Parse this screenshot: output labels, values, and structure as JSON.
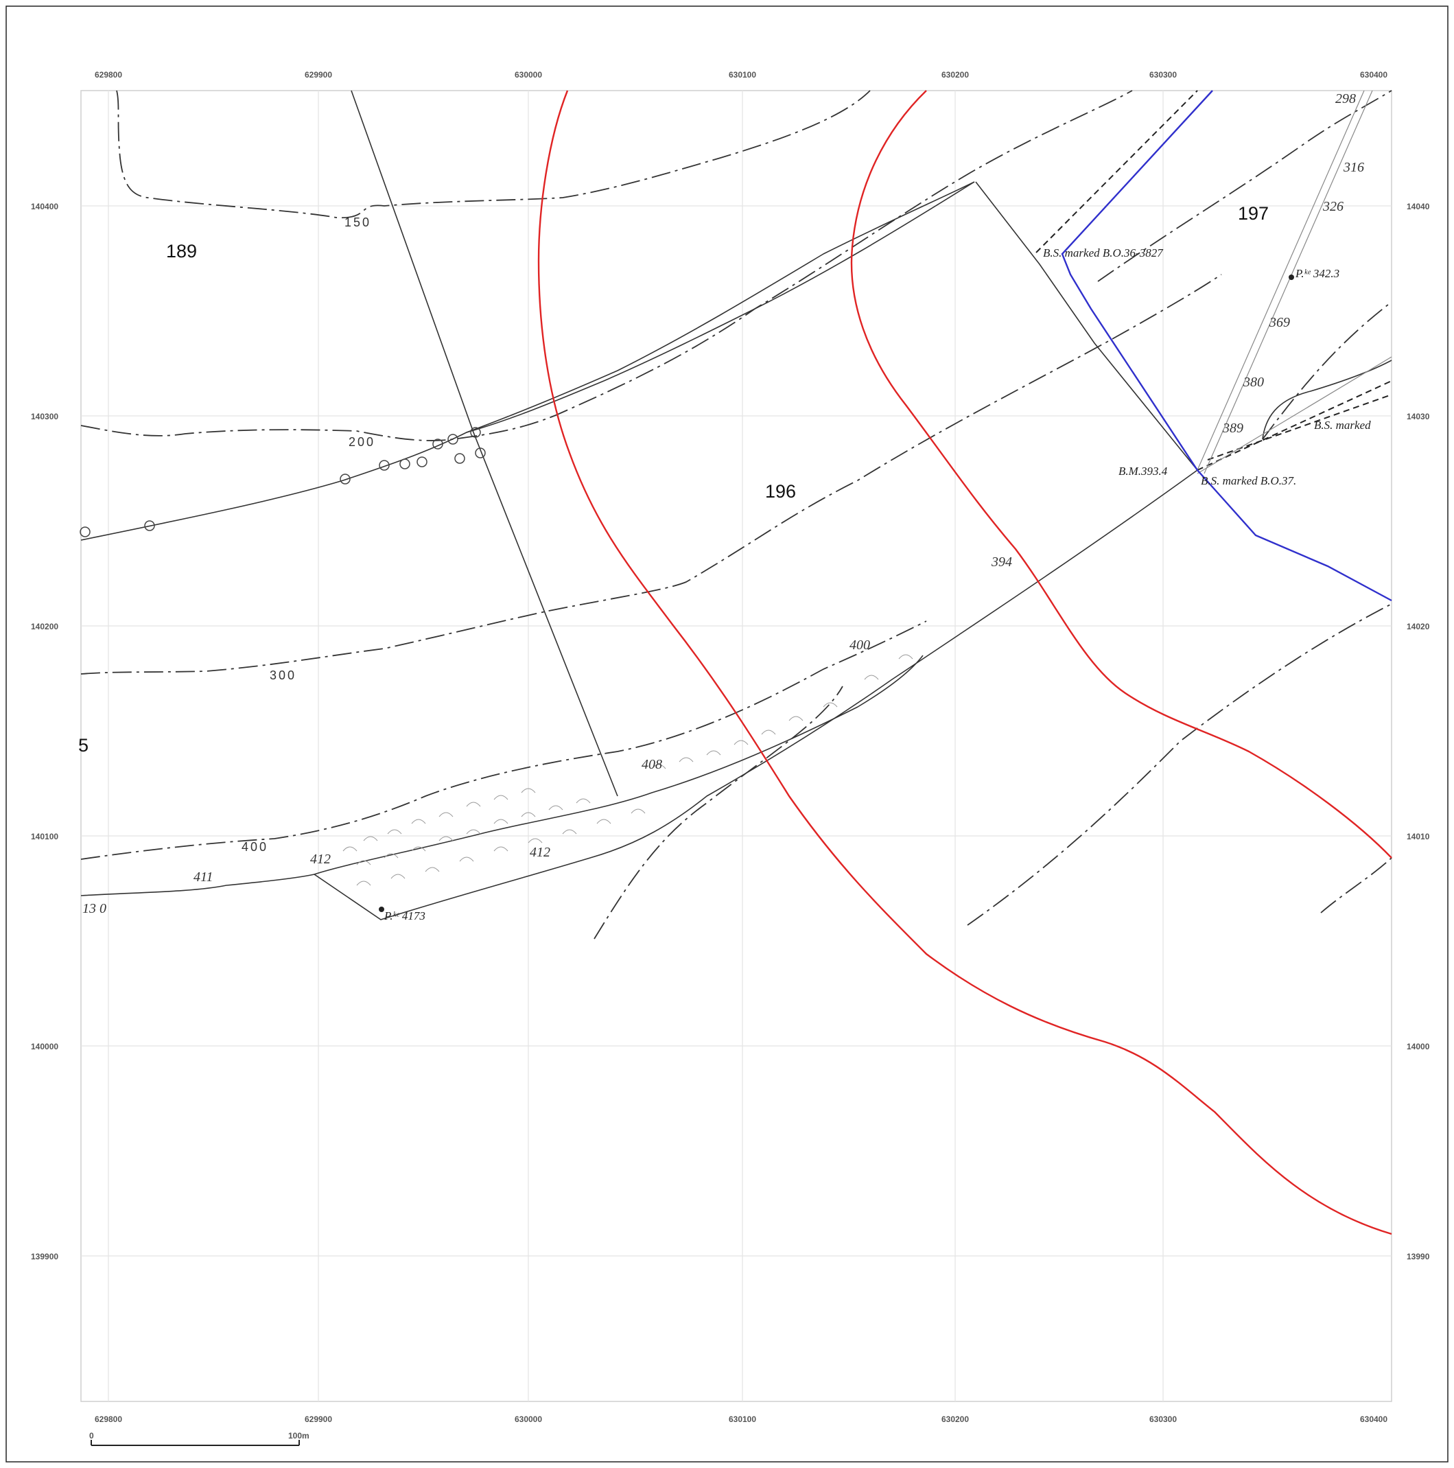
{
  "map": {
    "x_axis_ticks": [
      "629800",
      "629900",
      "630000",
      "630100",
      "630200",
      "630300",
      "630400"
    ],
    "y_axis_ticks": [
      "140400",
      "140300",
      "140200",
      "140100",
      "140000",
      "139900"
    ],
    "y_axis_ticks_right": [
      "14040",
      "14030",
      "14020",
      "14010",
      "14000",
      "13990"
    ],
    "parcels": [
      "189",
      "196",
      "197"
    ],
    "contour_labels": [
      "150",
      "200",
      "300",
      "400"
    ],
    "spot_heights": [
      "411",
      "412",
      "412",
      "408",
      "400",
      "394",
      "389",
      "380",
      "369",
      "326",
      "316",
      "298",
      "13 0",
      "4173"
    ],
    "annotations": {
      "bs_marked_1": "B.S. marked B.O.36-3827",
      "bs_marked_2": "B.S. marked",
      "bs_marked_3": "B.S. marked B.O.37.",
      "benchmark": "B.M.393.4",
      "pillar_1": "P.ᵏᵉ 342.3",
      "pillar_2": "P.ᵏᵉ 4173",
      "left_edge": "5"
    },
    "scale_bar": {
      "start": "0",
      "end": "100m"
    },
    "line_colors": {
      "proposed_route": "#e02424",
      "boundary": "#3030cc",
      "base": "#333333"
    }
  }
}
